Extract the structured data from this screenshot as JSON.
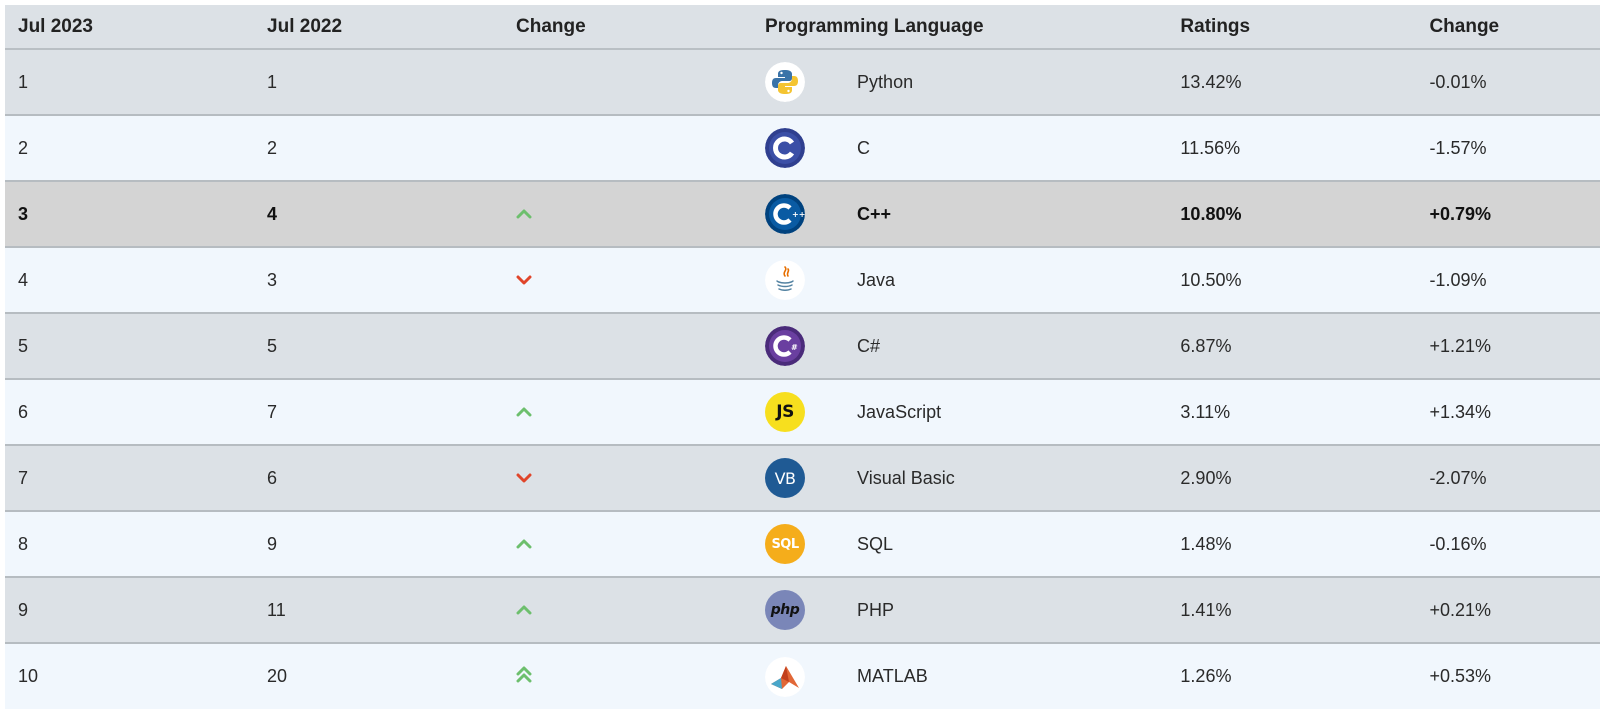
{
  "headers": {
    "col1": "Jul 2023",
    "col2": "Jul 2022",
    "col3": "Change",
    "col4": "Programming Language",
    "col5": "Ratings",
    "col6": "Change"
  },
  "rows": [
    {
      "rank": "1",
      "prev": "1",
      "trend": "none",
      "language": "Python",
      "logo": "python-icon",
      "rating": "13.42%",
      "delta": "-0.01%"
    },
    {
      "rank": "2",
      "prev": "2",
      "trend": "none",
      "language": "C",
      "logo": "c-icon",
      "rating": "11.56%",
      "delta": "-1.57%"
    },
    {
      "rank": "3",
      "prev": "4",
      "trend": "up",
      "language": "C++",
      "logo": "cpp-icon",
      "rating": "10.80%",
      "delta": "+0.79%",
      "highlight": true
    },
    {
      "rank": "4",
      "prev": "3",
      "trend": "down",
      "language": "Java",
      "logo": "java-icon",
      "rating": "10.50%",
      "delta": "-1.09%"
    },
    {
      "rank": "5",
      "prev": "5",
      "trend": "none",
      "language": "C#",
      "logo": "csharp-icon",
      "rating": "6.87%",
      "delta": "+1.21%"
    },
    {
      "rank": "6",
      "prev": "7",
      "trend": "up",
      "language": "JavaScript",
      "logo": "javascript-icon",
      "rating": "3.11%",
      "delta": "+1.34%"
    },
    {
      "rank": "7",
      "prev": "6",
      "trend": "down",
      "language": "Visual Basic",
      "logo": "visual-basic-icon",
      "rating": "2.90%",
      "delta": "-2.07%"
    },
    {
      "rank": "8",
      "prev": "9",
      "trend": "up",
      "language": "SQL",
      "logo": "sql-icon",
      "rating": "1.48%",
      "delta": "-0.16%"
    },
    {
      "rank": "9",
      "prev": "11",
      "trend": "up",
      "language": "PHP",
      "logo": "php-icon",
      "rating": "1.41%",
      "delta": "+0.21%"
    },
    {
      "rank": "10",
      "prev": "20",
      "trend": "double-up",
      "language": "MATLAB",
      "logo": "matlab-icon",
      "rating": "1.26%",
      "delta": "+0.53%"
    }
  ],
  "logo_labels": {
    "javascript": "JS",
    "visual_basic": "VB",
    "sql": "SQL",
    "php": "php"
  },
  "colors": {
    "up": "#6dbf6d",
    "down": "#e0452a"
  }
}
